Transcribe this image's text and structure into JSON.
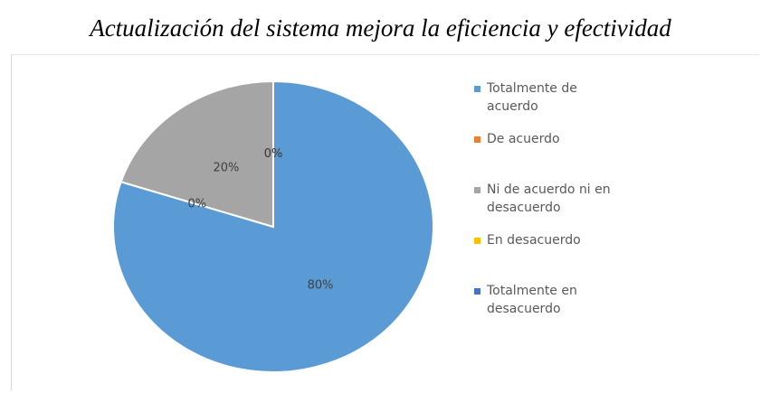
{
  "chart_data": {
    "type": "pie",
    "title": "Actualización del sistema mejora la eficiencia y efectividad",
    "categories": [
      "Totalmente de acuerdo",
      "De acuerdo",
      "Ni de acuerdo ni en desacuerdo",
      "En desacuerdo",
      "Totalmente en desacuerdo"
    ],
    "values": [
      80,
      0,
      20,
      0,
      0
    ],
    "value_labels": [
      "80%",
      "0%",
      "20%",
      "0%",
      "0%"
    ],
    "colors": [
      "#5b9bd5",
      "#ed7d31",
      "#a5a5a5",
      "#ffc000",
      "#4472c4"
    ],
    "legend": "right"
  }
}
